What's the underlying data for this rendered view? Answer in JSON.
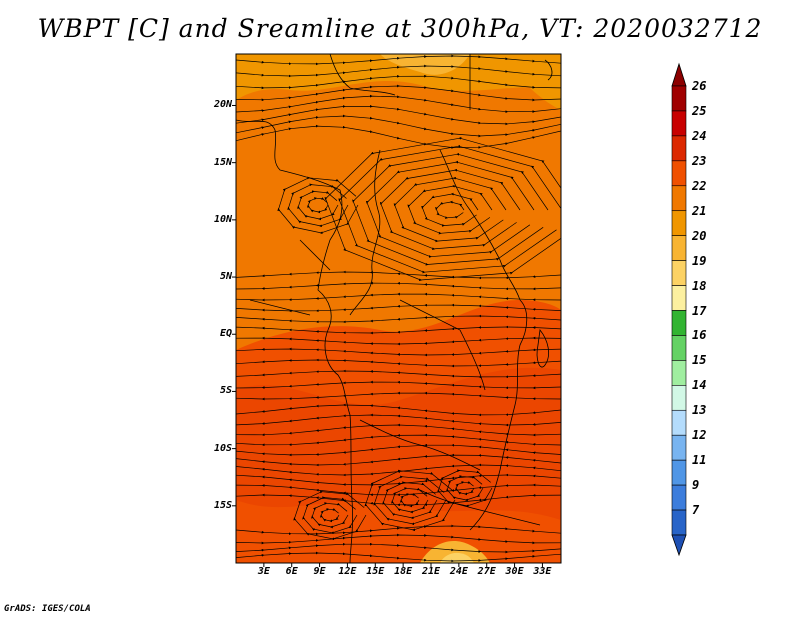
{
  "title": "WBPT [C] and Sreamline at 300hPa, VT: 2020032712",
  "credit": "GrADS: IGES/COLA",
  "lat_labels": [
    {
      "text": "20N",
      "lat": 20
    },
    {
      "text": "15N",
      "lat": 15
    },
    {
      "text": "10N",
      "lat": 10
    },
    {
      "text": "5N",
      "lat": 5
    },
    {
      "text": "EQ",
      "lat": 0
    },
    {
      "text": "5S",
      "lat": -5
    },
    {
      "text": "10S",
      "lat": -10
    },
    {
      "text": "15S",
      "lat": -15
    }
  ],
  "lon_labels": [
    {
      "text": "3E",
      "lon": 3
    },
    {
      "text": "6E",
      "lon": 6
    },
    {
      "text": "9E",
      "lon": 9
    },
    {
      "text": "12E",
      "lon": 12
    },
    {
      "text": "15E",
      "lon": 15
    },
    {
      "text": "18E",
      "lon": 18
    },
    {
      "text": "21E",
      "lon": 21
    },
    {
      "text": "24E",
      "lon": 24
    },
    {
      "text": "27E",
      "lon": 27
    },
    {
      "text": "30E",
      "lon": 30
    },
    {
      "text": "33E",
      "lon": 33
    }
  ],
  "extent": {
    "lon_min": 0,
    "lon_max": 35,
    "lat_min": -20,
    "lat_max": 24.5
  },
  "colorbar": {
    "labels": [
      "26",
      "25",
      "24",
      "23",
      "22",
      "21",
      "20",
      "19",
      "18",
      "17",
      "16",
      "15",
      "14",
      "13",
      "12",
      "11",
      "9",
      "7"
    ],
    "colors": [
      "#a00000",
      "#c80000",
      "#dc2800",
      "#f05000",
      "#f07800",
      "#f09600",
      "#f8b432",
      "#fcd264",
      "#fcf0a0",
      "#32b432",
      "#64d264",
      "#a0eea0",
      "#d2f8e6",
      "#b4dcfc",
      "#78b4f0",
      "#5096e6",
      "#3c7ddc",
      "#2864c8"
    ],
    "top_arrow_color": "#8c0000",
    "bottom_arrow_color": "#1e50b4"
  }
}
